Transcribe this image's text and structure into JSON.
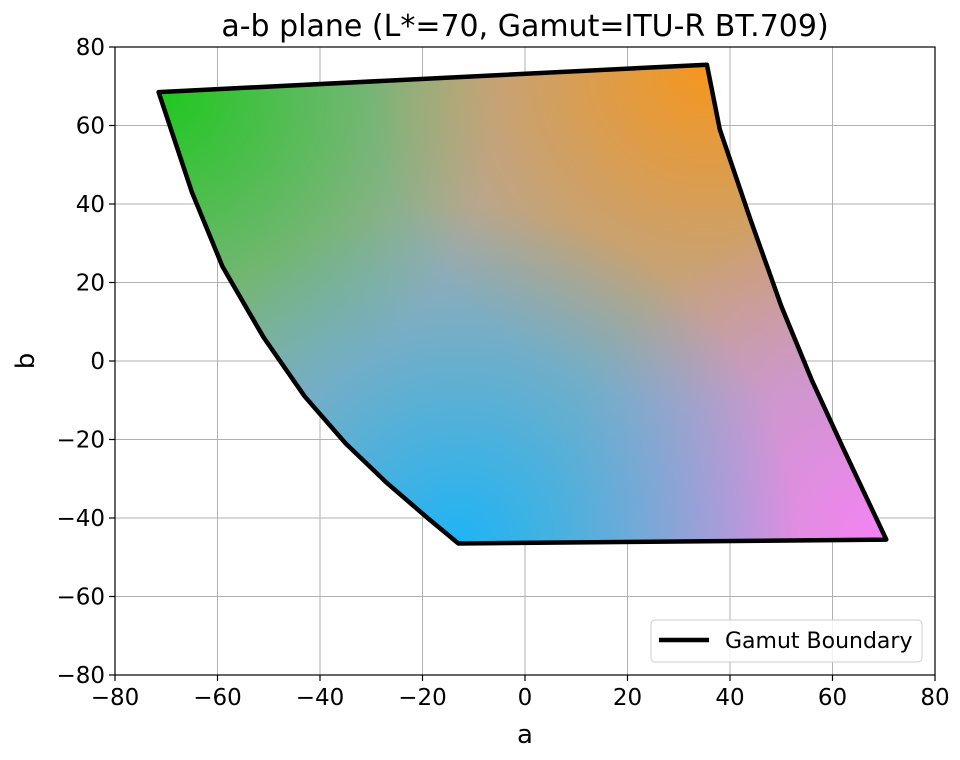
{
  "chart_data": {
    "type": "line",
    "title": "a-b plane (L*=70, Gamut=ITU-R BT.709)",
    "xlabel": "a",
    "ylabel": "b",
    "xlim": [
      -80,
      80
    ],
    "ylim": [
      -80,
      80
    ],
    "x_ticks": [
      -80,
      -60,
      -40,
      -20,
      0,
      20,
      40,
      60,
      80
    ],
    "y_ticks": [
      -80,
      -60,
      -40,
      -20,
      0,
      20,
      40,
      60,
      80
    ],
    "x_tick_labels": [
      "−80",
      "−60",
      "−40",
      "−20",
      "0",
      "20",
      "40",
      "60",
      "80"
    ],
    "y_tick_labels": [
      "−80",
      "−60",
      "−40",
      "−20",
      "0",
      "20",
      "40",
      "60",
      "80"
    ],
    "grid": true,
    "legend": {
      "position": "bottom-right",
      "entries": [
        "Gamut Boundary"
      ]
    },
    "series": [
      {
        "name": "Gamut Boundary",
        "color": "#000000",
        "x": [
          -71.5,
          35.5,
          38,
          44,
          50,
          56,
          62,
          70.5,
          -13,
          -19,
          -27,
          -35,
          -43,
          -51,
          -59,
          -65,
          -71.5
        ],
        "y": [
          68.5,
          75.5,
          59,
          36,
          14,
          -5,
          -22,
          -45.5,
          -46.5,
          -40,
          -31,
          -21,
          -9,
          6,
          24,
          43,
          68.5
        ]
      }
    ],
    "fill_vertex_colors": {
      "green_corner": "#1ec81e",
      "orange_corner": "#f5961e",
      "magenta_corner": "#f582f5",
      "cyan_corner": "#1eb4f5",
      "center": "#aaaaaa"
    }
  }
}
